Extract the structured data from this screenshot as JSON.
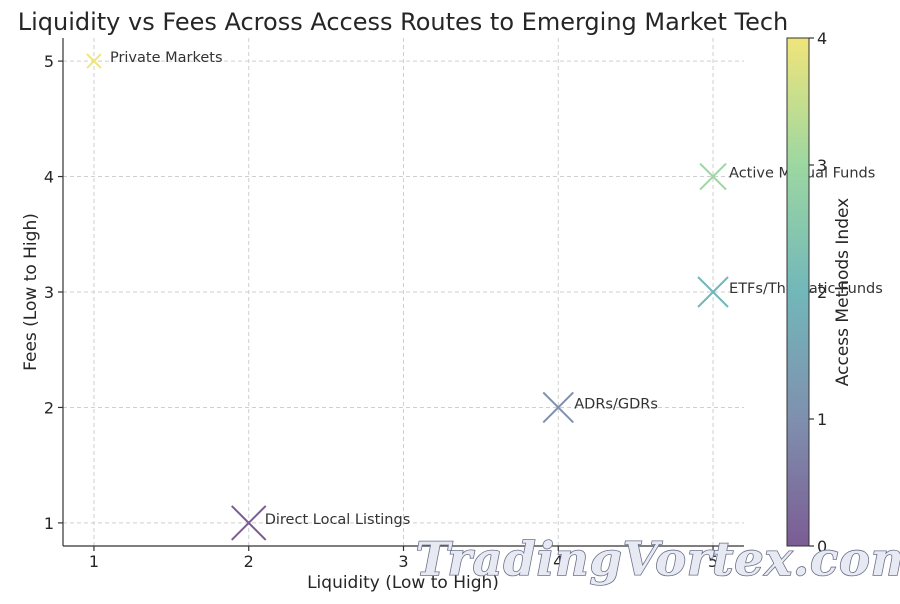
{
  "chart_data": {
    "type": "scatter",
    "title": "Liquidity vs Fees Across Access Routes to Emerging Market Tech",
    "xlabel": "Liquidity (Low to High)",
    "ylabel": "Fees (Low to High)",
    "xlim": [
      0.8,
      5.2
    ],
    "ylim": [
      0.8,
      5.2
    ],
    "xticks": [
      1,
      2,
      3,
      4,
      5
    ],
    "yticks": [
      1,
      2,
      3,
      4,
      5
    ],
    "grid": true,
    "marker": "x",
    "points": [
      {
        "label": "Direct Local Listings",
        "x": 2,
        "y": 1,
        "index": 0,
        "color": "#7b5c94"
      },
      {
        "label": "ADRs/GDRs",
        "x": 4,
        "y": 2,
        "index": 1,
        "color": "#7f90ae"
      },
      {
        "label": "ETFs/Thematic Funds",
        "x": 5,
        "y": 3,
        "index": 2,
        "color": "#72b7ba"
      },
      {
        "label": "Active Mutual Funds",
        "x": 5,
        "y": 4,
        "index": 3,
        "color": "#9cd7a1"
      },
      {
        "label": "Private Markets",
        "x": 1,
        "y": 5,
        "index": 4,
        "color": "#f0e57a"
      }
    ],
    "colorbar": {
      "label": "Access Methods Index",
      "range": [
        0,
        4
      ],
      "ticks": [
        0,
        1,
        2,
        3,
        4
      ],
      "colors": [
        "#7b5c94",
        "#7f90ae",
        "#72b7ba",
        "#9cd7a1",
        "#f0e57a"
      ]
    }
  },
  "watermark": "TradingVortex.com"
}
